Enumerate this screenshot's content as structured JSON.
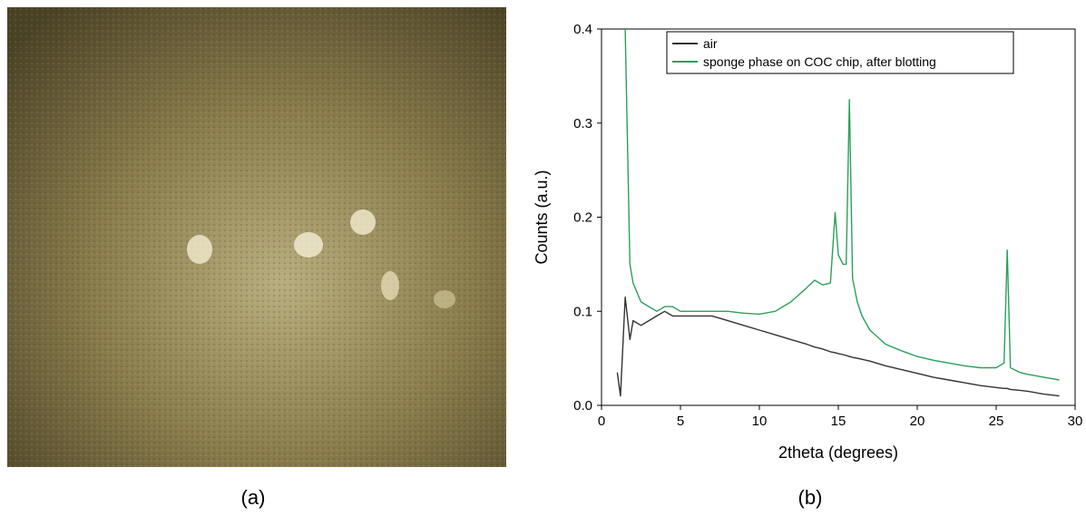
{
  "panel_labels": [
    "(a)",
    "(b)"
  ],
  "chart_data": {
    "type": "line",
    "x_label": "2theta (degrees)",
    "y_label": "Counts (a.u.)",
    "x": [
      1,
      1.2,
      1.5,
      1.8,
      2,
      2.5,
      3,
      3.5,
      4,
      4.5,
      5,
      6,
      7,
      8,
      9,
      10,
      11,
      12,
      13,
      13.5,
      14,
      14.5,
      14.8,
      15,
      15.3,
      15.5,
      15.7,
      15.9,
      16.2,
      16.5,
      17,
      18,
      19,
      20,
      21,
      22,
      23,
      24,
      25,
      25.5,
      25.7,
      25.9,
      26.5,
      27,
      28,
      29
    ],
    "series": [
      {
        "name": "air",
        "color": "#333333",
        "values": [
          0.035,
          0.01,
          0.115,
          0.07,
          0.09,
          0.085,
          0.09,
          0.095,
          0.1,
          0.095,
          0.095,
          0.095,
          0.095,
          0.09,
          0.085,
          0.08,
          0.075,
          0.07,
          0.065,
          0.062,
          0.06,
          0.057,
          0.056,
          0.055,
          0.054,
          0.053,
          0.052,
          0.051,
          0.05,
          0.049,
          0.047,
          0.042,
          0.038,
          0.034,
          0.03,
          0.027,
          0.024,
          0.021,
          0.019,
          0.018,
          0.018,
          0.017,
          0.016,
          0.015,
          0.012,
          0.01
        ]
      },
      {
        "name": "sponge phase on COC chip, after blotting",
        "color": "#2ca05a",
        "values": [
          null,
          null,
          0.4,
          0.15,
          0.13,
          0.11,
          0.105,
          0.1,
          0.105,
          0.105,
          0.1,
          0.1,
          0.1,
          0.1,
          0.098,
          0.097,
          0.1,
          0.11,
          0.125,
          0.133,
          0.128,
          0.13,
          0.205,
          0.16,
          0.15,
          0.15,
          0.325,
          0.135,
          0.11,
          0.095,
          0.08,
          0.065,
          0.058,
          0.052,
          0.048,
          0.045,
          0.042,
          0.04,
          0.04,
          0.045,
          0.165,
          0.04,
          0.035,
          0.033,
          0.03,
          0.027
        ]
      }
    ],
    "xlim": [
      0,
      30
    ],
    "ylim": [
      0,
      0.4
    ],
    "xticks": [
      0,
      5,
      10,
      15,
      20,
      25,
      30
    ],
    "yticks": [
      {
        "value": 0,
        "label": "0.0"
      },
      0.1,
      0.2,
      0.3,
      0.4
    ],
    "legend": "top-right"
  }
}
